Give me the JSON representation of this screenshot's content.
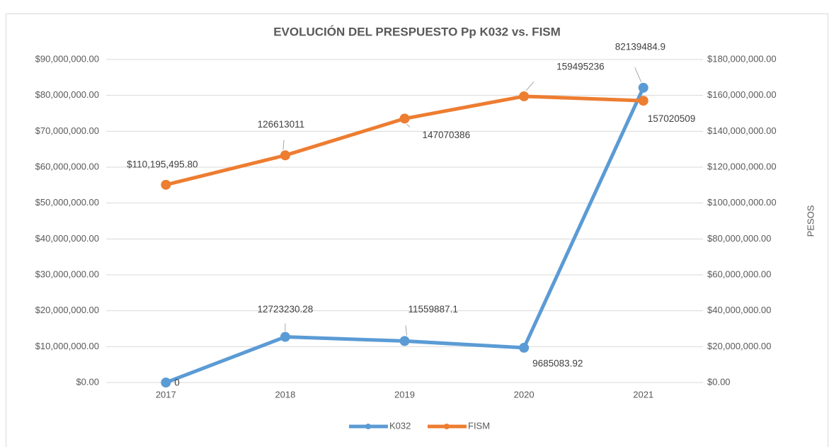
{
  "chart_data": {
    "type": "line",
    "title": "EVOLUCIÓN DEL PRESPUESTO Pp K032 vs. FISM",
    "categories": [
      "2017",
      "2018",
      "2019",
      "2020",
      "2021"
    ],
    "series": [
      {
        "name": "K032",
        "color": "#5b9bd5",
        "values": [
          0,
          12723230.28,
          11559887.1,
          9685083.92,
          82139484.9
        ]
      },
      {
        "name": "FISM",
        "color": "#ed7d31",
        "axis": "y2",
        "values": [
          110195495.8,
          126613011,
          147070386,
          159495236,
          157020509
        ],
        "value_labels": [
          "$110,195,495.80",
          "126613011",
          "147070386",
          "159495236",
          "157020509"
        ]
      }
    ],
    "ylim": [
      0,
      90000000
    ],
    "yticks": [
      {
        "value": 0,
        "label": "$0.00"
      },
      {
        "value": 10000000,
        "label": "$10,000,000.00"
      },
      {
        "value": 20000000,
        "label": "$20,000,000.00"
      },
      {
        "value": 30000000,
        "label": "$30,000,000.00"
      },
      {
        "value": 40000000,
        "label": "$40,000,000.00"
      },
      {
        "value": 50000000,
        "label": "$50,000,000.00"
      },
      {
        "value": 60000000,
        "label": "$60,000,000.00"
      },
      {
        "value": 70000000,
        "label": "$70,000,000.00"
      },
      {
        "value": 80000000,
        "label": "$80,000,000.00"
      },
      {
        "value": 90000000,
        "label": "$90,000,000.00"
      }
    ],
    "y2lim": [
      0,
      180000000
    ],
    "y2ticks": [
      {
        "value": 0,
        "label": "$0.00"
      },
      {
        "value": 20000000,
        "label": "$20,000,000.00"
      },
      {
        "value": 40000000,
        "label": "$40,000,000.00"
      },
      {
        "value": 60000000,
        "label": "$60,000,000.00"
      },
      {
        "value": 80000000,
        "label": "$80,000,000.00"
      },
      {
        "value": 100000000,
        "label": "$100,000,000.00"
      },
      {
        "value": 120000000,
        "label": "$120,000,000.00"
      },
      {
        "value": 140000000,
        "label": "$140,000,000.00"
      },
      {
        "value": 160000000,
        "label": "$160,000,000.00"
      },
      {
        "value": 180000000,
        "label": "$180,000,000.00"
      }
    ],
    "y2label": "PESOS",
    "grid": true,
    "legend": "bottom"
  }
}
